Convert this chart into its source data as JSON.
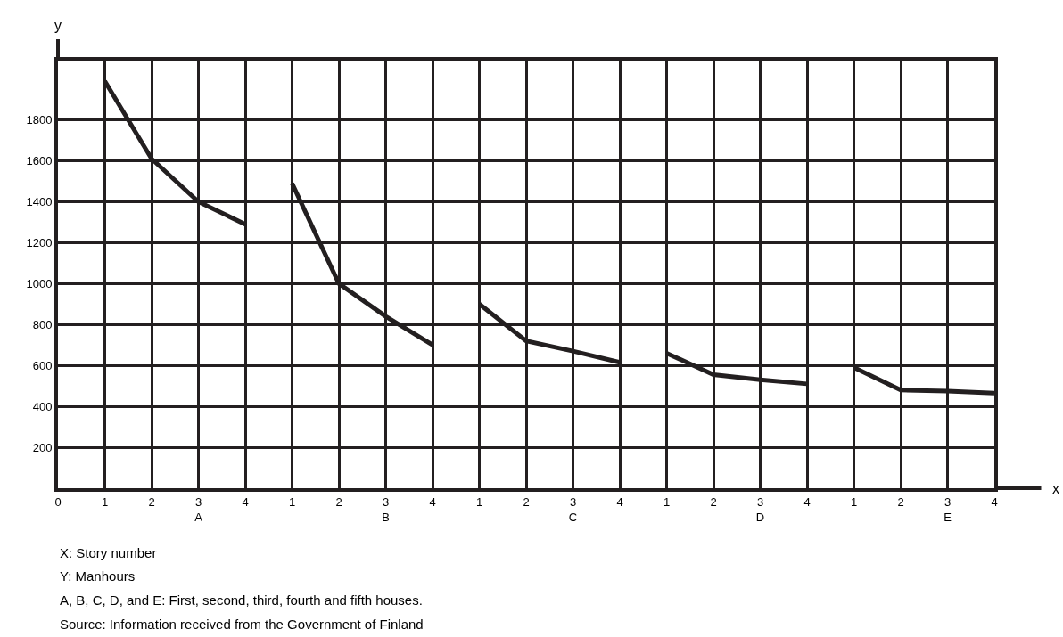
{
  "chart_data": {
    "type": "line",
    "xlabel": "x",
    "ylabel": "y",
    "categories": [
      "0",
      "1",
      "2",
      "3\nA",
      "4",
      "1",
      "2",
      "3\nB",
      "4",
      "1",
      "2",
      "3\nC",
      "4",
      "1",
      "2",
      "3\nD",
      "4",
      "1",
      "2",
      "3\nE",
      "4"
    ],
    "ylim": [
      0,
      2090
    ],
    "yticks": [
      200,
      400,
      600,
      800,
      1000,
      1200,
      1400,
      1600,
      1800
    ],
    "grid": true,
    "marker": "none",
    "line_style": "solid",
    "series": [
      {
        "color": "#231f20",
        "values": [
          null,
          1990,
          1610,
          1400,
          1290,
          null,
          null,
          null,
          null,
          null,
          null,
          null,
          null,
          null,
          null,
          null,
          null,
          null,
          null,
          null,
          null
        ]
      },
      {
        "color": "#231f20",
        "values": [
          null,
          null,
          null,
          null,
          null,
          1490,
          1000,
          840,
          700,
          null,
          null,
          null,
          null,
          null,
          null,
          null,
          null,
          null,
          null,
          null,
          null
        ]
      },
      {
        "color": "#231f20",
        "values": [
          null,
          null,
          null,
          null,
          null,
          null,
          null,
          null,
          null,
          900,
          720,
          670,
          615,
          null,
          null,
          null,
          null,
          null,
          null,
          null,
          null
        ]
      },
      {
        "color": "#231f20",
        "values": [
          null,
          null,
          null,
          null,
          null,
          null,
          null,
          null,
          null,
          null,
          null,
          null,
          null,
          660,
          555,
          530,
          510,
          null,
          null,
          null,
          null
        ]
      },
      {
        "color": "#231f20",
        "values": [
          null,
          null,
          null,
          null,
          null,
          null,
          null,
          null,
          null,
          null,
          null,
          null,
          null,
          null,
          null,
          null,
          null,
          590,
          480,
          475,
          465
        ]
      }
    ],
    "annotations": [
      "X: Story number",
      "Y: Manhours",
      "A, B, C, D, and E: First, second, third, fourth and fifth houses.",
      "Source: Information received from the Government of Finland"
    ]
  }
}
